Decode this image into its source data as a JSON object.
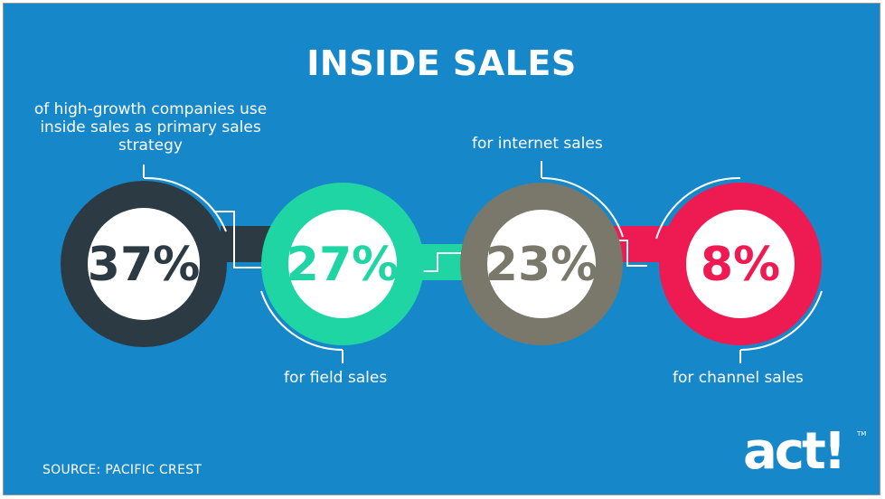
{
  "title": "INSIDE SALES",
  "stats": [
    {
      "value": "37%",
      "label": "of high-growth companies use inside sales as primary sales strategy",
      "color": "#2c3a44"
    },
    {
      "value": "27%",
      "label": "for field sales",
      "color": "#20d5a4"
    },
    {
      "value": "23%",
      "label": "for internet sales",
      "color": "#7a786b"
    },
    {
      "value": "8%",
      "label": "for channel sales",
      "color": "#ee1b52"
    }
  ],
  "source": "SOURCE: PACIFIC CREST",
  "logo": {
    "text": "act!",
    "trademark": "TM"
  },
  "colors": {
    "background": "#1688c9",
    "text": "#ffffff"
  }
}
